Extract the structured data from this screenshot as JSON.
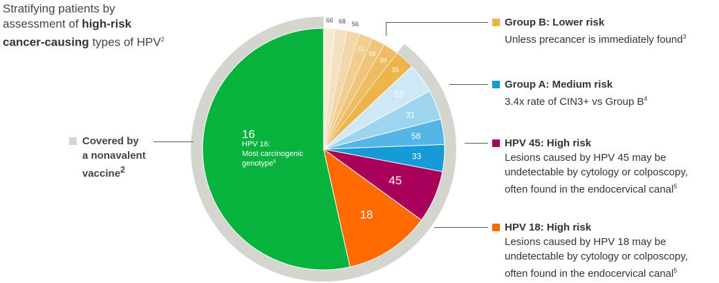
{
  "title": {
    "line1": "Stratifying patients by",
    "line2_pre": "assessment of ",
    "line2_bold": "high-risk",
    "line3_bold": "cancer-causing",
    "line3_post": " types of HPV",
    "line3_sup": "2"
  },
  "covered": {
    "l1": "Covered by",
    "l2": "a nonavalent",
    "l3": "vaccine",
    "sup": "2"
  },
  "legend": {
    "groupB": {
      "head": "Group B: Lower risk",
      "text": "Unless precancer is immediately found",
      "sup": "3"
    },
    "groupA": {
      "head": "Group A: Medium risk",
      "text": "3.4x rate of CIN3+ vs Group B",
      "sup": "4"
    },
    "hpv45": {
      "head": "HPV 45: High risk",
      "l1": "Lesions caused by HPV 45 may be",
      "l2": "undetectable by cytology or colposcopy,",
      "l3": "often found in the endocervical canal",
      "sup": "5"
    },
    "hpv18": {
      "head": "HPV 18: High risk",
      "l1": "Lesions caused by HPV 18 may be",
      "l2": "undetectable by cytology or colposcopy,",
      "l3": "often found in the endocervical canal",
      "sup": "5"
    }
  },
  "chart_data": {
    "type": "pie",
    "slices": [
      {
        "label": "66",
        "value": 1.5,
        "color": "#f7e9d2"
      },
      {
        "label": "68",
        "value": 1.6,
        "color": "#f5e1c0"
      },
      {
        "label": "56",
        "value": 1.7,
        "color": "#f3d7ab"
      },
      {
        "label": "51",
        "value": 1.8,
        "color": "#f2cd8f"
      },
      {
        "label": "59",
        "value": 1.8,
        "color": "#f0c57b"
      },
      {
        "label": "39",
        "value": 2.0,
        "color": "#efbc62"
      },
      {
        "label": "35",
        "value": 2.6,
        "color": "#edb44a"
      },
      {
        "label": "52",
        "value": 4.0,
        "color": "#cfe8f6"
      },
      {
        "label": "31",
        "value": 4.0,
        "color": "#9dd4f0"
      },
      {
        "label": "58",
        "value": 3.4,
        "color": "#55b5e6"
      },
      {
        "label": "33",
        "value": 3.6,
        "color": "#169bd7"
      },
      {
        "label": "45",
        "value": 7.0,
        "color": "#a8005a"
      },
      {
        "label": "18",
        "value": 11.5,
        "color": "#ff6b00"
      },
      {
        "label": "16",
        "value": 53.5,
        "color": "#07b23d",
        "sublabel": [
          "HPV 16:",
          "Most carcinogenic",
          "genotype"
        ],
        "sublabel_sup": "5"
      }
    ],
    "outer_ring": {
      "covers": "nonavalent vaccine types",
      "color": "#d5d5d0",
      "excluded": [
        "66",
        "68",
        "56",
        "51",
        "59",
        "39"
      ]
    }
  }
}
